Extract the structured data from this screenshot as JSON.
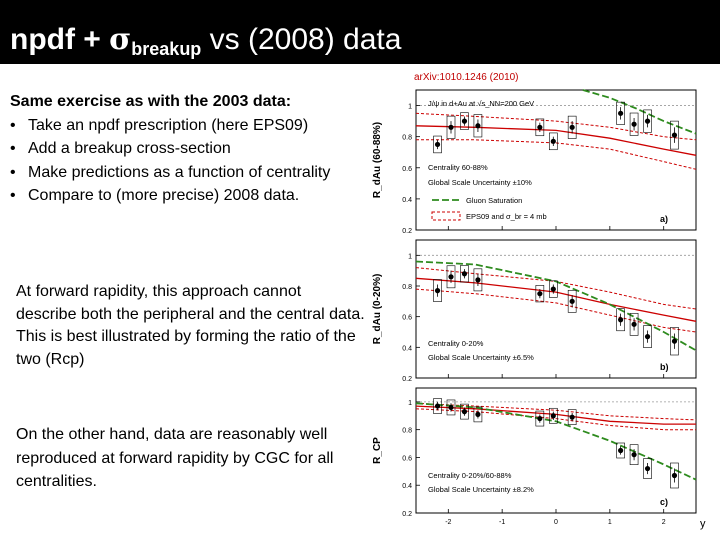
{
  "slide": {
    "title_left": "npdf + ",
    "title_sigma": "σ",
    "title_sub": "breakup",
    "title_right": " vs (2008) data",
    "reference": "arXiv:1010.1246 (2010)",
    "block1": {
      "heading": "Same exercise as with the 2003 data:",
      "bullets": [
        {
          "marker": "•",
          "text": "Take an npdf prescription (here EPS09)"
        },
        {
          "marker": "•",
          "text": "Add a breakup cross-section"
        },
        {
          "marker": "•",
          "text": "Make predictions as a function of centrality"
        },
        {
          "marker": "•",
          "text": "Compare to (more precise) 2008 data."
        }
      ]
    },
    "block2": [
      "At forward rapidity, this approach cannot describe both the peripheral and the central data.",
      "This is best illustrated by forming the ratio of the two (Rcp)"
    ],
    "block3": "On the other hand, data are reasonably well reproduced at forward rapidity by CGC for all centralities.",
    "corner_label": "y"
  },
  "colors": {
    "band": "#cc0000",
    "gluon": "#2e8b1e",
    "point": "#000000"
  },
  "chart_data": [
    {
      "type": "scatter",
      "panel_label": "a)",
      "ylabel": "R_dAu (60-88%)",
      "ylim": [
        0.2,
        1.1
      ],
      "yticks": [
        0.2,
        0.4,
        0.6,
        0.8,
        1
      ],
      "xlim": [
        -2.6,
        2.6
      ],
      "annotations": [
        "J/ψ in d+Au at √s_NN=200 GeV",
        "Centrality 60-88%",
        "Global Scale Uncertainty ±10%",
        "Gluon Saturation",
        "EPS09 and σ_br = 4 mb"
      ],
      "legend_items": [
        {
          "label": "Gluon Saturation",
          "style": "gluon"
        },
        {
          "label": "EPS09 and σ_br = 4 mb",
          "style": "band"
        }
      ],
      "series": [
        {
          "name": "data",
          "x": [
            -2.2,
            -1.95,
            -1.7,
            -1.45,
            -0.3,
            -0.05,
            0.3,
            1.2,
            1.45,
            1.7,
            2.2
          ],
          "y": [
            0.75,
            0.86,
            0.9,
            0.87,
            0.86,
            0.77,
            0.86,
            0.95,
            0.88,
            0.9,
            0.81
          ],
          "yerr": [
            0.03,
            0.04,
            0.03,
            0.04,
            0.03,
            0.03,
            0.04,
            0.04,
            0.04,
            0.04,
            0.05
          ]
        },
        {
          "name": "EPS09 band upper",
          "x": [
            -2.6,
            -1.5,
            0,
            1,
            2,
            2.6
          ],
          "y": [
            0.95,
            0.93,
            0.9,
            0.86,
            0.8,
            0.78
          ]
        },
        {
          "name": "EPS09 band center",
          "x": [
            -2.6,
            -1.5,
            0,
            1,
            2,
            2.6
          ],
          "y": [
            0.87,
            0.86,
            0.84,
            0.79,
            0.72,
            0.68
          ]
        },
        {
          "name": "EPS09 band lower",
          "x": [
            -2.6,
            -1.5,
            0,
            1,
            2,
            2.6
          ],
          "y": [
            0.78,
            0.78,
            0.76,
            0.72,
            0.64,
            0.59
          ]
        },
        {
          "name": "Gluon Saturation",
          "x": [
            0.5,
            1,
            1.5,
            2,
            2.6
          ],
          "y": [
            1.1,
            1.05,
            0.98,
            0.9,
            0.82
          ]
        }
      ]
    },
    {
      "type": "scatter",
      "panel_label": "b)",
      "ylabel": "R_dAu (0-20%)",
      "ylim": [
        0.2,
        1.1
      ],
      "yticks": [
        0.2,
        0.4,
        0.6,
        0.8,
        1
      ],
      "xlim": [
        -2.6,
        2.6
      ],
      "annotations": [
        "Centrality 0-20%",
        "Global Scale Uncertainty ±6.5%"
      ],
      "series": [
        {
          "name": "data",
          "x": [
            -2.2,
            -1.95,
            -1.7,
            -1.45,
            -0.3,
            -0.05,
            0.3,
            1.2,
            1.45,
            1.7,
            2.2
          ],
          "y": [
            0.77,
            0.86,
            0.88,
            0.84,
            0.75,
            0.78,
            0.7,
            0.58,
            0.55,
            0.47,
            0.44
          ],
          "yerr": [
            0.04,
            0.04,
            0.03,
            0.04,
            0.03,
            0.03,
            0.04,
            0.04,
            0.04,
            0.04,
            0.05
          ]
        },
        {
          "name": "EPS09 band upper",
          "x": [
            -2.6,
            -1.5,
            0,
            1,
            2,
            2.6
          ],
          "y": [
            0.92,
            0.88,
            0.83,
            0.76,
            0.68,
            0.65
          ]
        },
        {
          "name": "EPS09 band center",
          "x": [
            -2.6,
            -1.5,
            0,
            1,
            2,
            2.6
          ],
          "y": [
            0.85,
            0.82,
            0.76,
            0.68,
            0.61,
            0.57
          ]
        },
        {
          "name": "EPS09 band lower",
          "x": [
            -2.6,
            -1.5,
            0,
            1,
            2,
            2.6
          ],
          "y": [
            0.78,
            0.75,
            0.69,
            0.61,
            0.53,
            0.5
          ]
        },
        {
          "name": "Gluon Saturation",
          "x": [
            -2.6,
            -1.5,
            0,
            1,
            2,
            2.6
          ],
          "y": [
            0.96,
            0.94,
            0.83,
            0.68,
            0.5,
            0.38
          ]
        }
      ]
    },
    {
      "type": "scatter",
      "panel_label": "c)",
      "ylabel": "R_CP",
      "ylim": [
        0.2,
        1.1
      ],
      "yticks": [
        0.2,
        0.4,
        0.6,
        0.8,
        1
      ],
      "xlim": [
        -2.6,
        2.6
      ],
      "xticks": [
        -2,
        -1,
        0,
        1,
        2
      ],
      "annotations": [
        "Centrality 0-20%/60-88%",
        "Global Scale Uncertainty ±8.2%"
      ],
      "series": [
        {
          "name": "data",
          "x": [
            -2.2,
            -1.95,
            -1.7,
            -1.45,
            -0.3,
            -0.05,
            0.3,
            1.2,
            1.45,
            1.7,
            2.2
          ],
          "y": [
            0.97,
            0.96,
            0.93,
            0.91,
            0.88,
            0.9,
            0.89,
            0.65,
            0.62,
            0.52,
            0.47
          ],
          "yerr": [
            0.03,
            0.03,
            0.03,
            0.03,
            0.03,
            0.03,
            0.03,
            0.03,
            0.04,
            0.04,
            0.05
          ]
        },
        {
          "name": "EPS09 band upper",
          "x": [
            -2.6,
            -1.5,
            0,
            1,
            2,
            2.6
          ],
          "y": [
            0.99,
            0.97,
            0.94,
            0.9,
            0.88,
            0.87
          ]
        },
        {
          "name": "EPS09 band center",
          "x": [
            -2.6,
            -1.5,
            0,
            1,
            2,
            2.6
          ],
          "y": [
            0.97,
            0.95,
            0.91,
            0.86,
            0.84,
            0.84
          ]
        },
        {
          "name": "EPS09 band lower",
          "x": [
            -2.6,
            -1.5,
            0,
            1,
            2,
            2.6
          ],
          "y": [
            0.95,
            0.93,
            0.88,
            0.83,
            0.8,
            0.8
          ]
        },
        {
          "name": "Gluon Saturation",
          "x": [
            -2.6,
            -1.5,
            0,
            1,
            2,
            2.6
          ],
          "y": [
            0.99,
            0.96,
            0.86,
            0.72,
            0.55,
            0.44
          ]
        }
      ]
    }
  ]
}
